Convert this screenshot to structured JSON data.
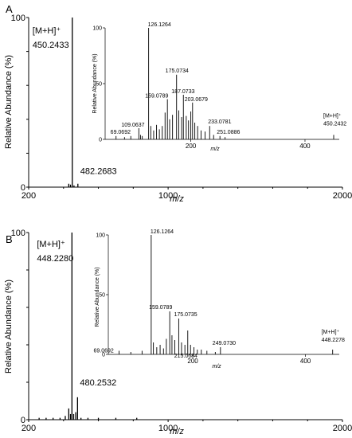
{
  "figure": {
    "panel_labels": [
      "A",
      "B"
    ]
  },
  "colors": {
    "axis": "#000000",
    "main_trace": "#000000",
    "inset_trace": "#1a1a1a"
  },
  "chart_data": [
    {
      "type": "bar",
      "panel": "A-main",
      "xlabel": "m/z",
      "ylabel": "Relative Abundance (%)",
      "xlim": [
        200,
        2000
      ],
      "ylim": [
        0,
        100
      ],
      "xticks": [
        200,
        1000,
        2000
      ],
      "yticks": [
        0,
        100
      ],
      "grid": false,
      "points": [
        {
          "x": 430,
          "y": 2
        },
        {
          "x": 440,
          "y": 1.5
        },
        {
          "x": 450.2433,
          "y": 100
        },
        {
          "x": 460,
          "y": 1
        },
        {
          "x": 482.2683,
          "y": 2
        }
      ],
      "annotations": [
        {
          "x": 450.2433,
          "text": "[M+H]⁺"
        },
        {
          "x": 450.2433,
          "text": "450.2433"
        },
        {
          "x": 482.2683,
          "text": "482.2683"
        }
      ]
    },
    {
      "type": "bar",
      "panel": "A-inset",
      "xlabel": "m/z",
      "ylabel": "Relative Abundance (%)",
      "xlim": [
        50,
        460
      ],
      "ylim": [
        0,
        100
      ],
      "xticks": [
        200,
        400
      ],
      "yticks": [
        0,
        50,
        100
      ],
      "grid": false,
      "points": [
        {
          "x": 69.0692,
          "y": 3
        },
        {
          "x": 84,
          "y": 2
        },
        {
          "x": 95,
          "y": 3
        },
        {
          "x": 109.0637,
          "y": 10
        },
        {
          "x": 112,
          "y": 4
        },
        {
          "x": 115,
          "y": 3
        },
        {
          "x": 126.1264,
          "y": 100
        },
        {
          "x": 130,
          "y": 12
        },
        {
          "x": 135,
          "y": 8
        },
        {
          "x": 140,
          "y": 13
        },
        {
          "x": 145,
          "y": 9
        },
        {
          "x": 150,
          "y": 12
        },
        {
          "x": 155,
          "y": 24
        },
        {
          "x": 159.0789,
          "y": 36
        },
        {
          "x": 163,
          "y": 18
        },
        {
          "x": 168,
          "y": 22
        },
        {
          "x": 175.0734,
          "y": 58
        },
        {
          "x": 179,
          "y": 26
        },
        {
          "x": 184,
          "y": 20
        },
        {
          "x": 187.0733,
          "y": 40
        },
        {
          "x": 192,
          "y": 21
        },
        {
          "x": 196,
          "y": 17
        },
        {
          "x": 200,
          "y": 25
        },
        {
          "x": 203.0679,
          "y": 33
        },
        {
          "x": 207,
          "y": 15
        },
        {
          "x": 212,
          "y": 12
        },
        {
          "x": 218,
          "y": 8
        },
        {
          "x": 225,
          "y": 7
        },
        {
          "x": 233.0781,
          "y": 12
        },
        {
          "x": 240,
          "y": 4
        },
        {
          "x": 251.0886,
          "y": 3
        },
        {
          "x": 260,
          "y": 2
        },
        {
          "x": 450.2432,
          "y": 4
        }
      ],
      "annotations": [
        {
          "x": 126.1264,
          "text": "126.1264"
        },
        {
          "x": 175.0734,
          "text": "175.0734"
        },
        {
          "x": 159.0789,
          "text": "159.0789"
        },
        {
          "x": 187.0733,
          "text": "187.0733"
        },
        {
          "x": 203.0679,
          "text": "203.0679"
        },
        {
          "x": 109.0637,
          "text": "109.0637"
        },
        {
          "x": 233.0781,
          "text": "233.0781"
        },
        {
          "x": 251.0886,
          "text": "251.0886"
        },
        {
          "x": 69.0692,
          "text": "69.0692"
        },
        {
          "x": 450.2432,
          "text": "[M+H]⁺"
        },
        {
          "x": 450.2432,
          "text": "450.2432"
        }
      ]
    },
    {
      "type": "bar",
      "panel": "B-main",
      "xlabel": "m/z",
      "ylabel": "Relative Abundance (%)",
      "xlim": [
        200,
        2000
      ],
      "ylim": [
        0,
        100
      ],
      "xticks": [
        200,
        1000,
        2000
      ],
      "yticks": [
        0,
        100
      ],
      "grid": false,
      "points": [
        {
          "x": 260,
          "y": 1
        },
        {
          "x": 300,
          "y": 1
        },
        {
          "x": 340,
          "y": 1
        },
        {
          "x": 380,
          "y": 1
        },
        {
          "x": 410,
          "y": 2
        },
        {
          "x": 430,
          "y": 6
        },
        {
          "x": 440,
          "y": 3
        },
        {
          "x": 448.228,
          "y": 100
        },
        {
          "x": 458,
          "y": 3
        },
        {
          "x": 470,
          "y": 4
        },
        {
          "x": 480.2532,
          "y": 12
        },
        {
          "x": 500,
          "y": 1
        },
        {
          "x": 540,
          "y": 1
        },
        {
          "x": 600,
          "y": 1
        },
        {
          "x": 700,
          "y": 1
        },
        {
          "x": 820,
          "y": 1
        }
      ],
      "annotations": [
        {
          "x": 448.228,
          "text": "[M+H]⁺"
        },
        {
          "x": 448.228,
          "text": "448.2280"
        },
        {
          "x": 480.2532,
          "text": "480.2532"
        }
      ]
    },
    {
      "type": "bar",
      "panel": "B-inset",
      "xlabel": "m/z",
      "ylabel": "Relative Abundance (%)",
      "xlim": [
        50,
        460
      ],
      "ylim": [
        0,
        100
      ],
      "xticks": [
        200,
        400
      ],
      "yticks": [
        0,
        50,
        100
      ],
      "grid": false,
      "points": [
        {
          "x": 69.0692,
          "y": 3
        },
        {
          "x": 90,
          "y": 2
        },
        {
          "x": 110,
          "y": 3
        },
        {
          "x": 126.1264,
          "y": 100
        },
        {
          "x": 130,
          "y": 10
        },
        {
          "x": 136,
          "y": 6
        },
        {
          "x": 142,
          "y": 8
        },
        {
          "x": 148,
          "y": 5
        },
        {
          "x": 153,
          "y": 13
        },
        {
          "x": 159.0789,
          "y": 36
        },
        {
          "x": 163,
          "y": 16
        },
        {
          "x": 168,
          "y": 12
        },
        {
          "x": 175.0735,
          "y": 30
        },
        {
          "x": 180,
          "y": 10
        },
        {
          "x": 186,
          "y": 8
        },
        {
          "x": 191,
          "y": 20
        },
        {
          "x": 196,
          "y": 8
        },
        {
          "x": 202,
          "y": 6
        },
        {
          "x": 208,
          "y": 4
        },
        {
          "x": 215.0684,
          "y": 4
        },
        {
          "x": 225,
          "y": 3
        },
        {
          "x": 240,
          "y": 2
        },
        {
          "x": 249.073,
          "y": 6
        },
        {
          "x": 448.2278,
          "y": 4
        }
      ],
      "annotations": [
        {
          "x": 126.1264,
          "text": "126.1264"
        },
        {
          "x": 159.0789,
          "text": "159.0789"
        },
        {
          "x": 175.0735,
          "text": "175.0735"
        },
        {
          "x": 215.0684,
          "text": "215.0684"
        },
        {
          "x": 249.073,
          "text": "249.0730"
        },
        {
          "x": 69.0692,
          "text": "69.0692"
        },
        {
          "x": 448.2278,
          "text": "[M+H]⁺"
        },
        {
          "x": 448.2278,
          "text": "448.2278"
        }
      ]
    }
  ]
}
